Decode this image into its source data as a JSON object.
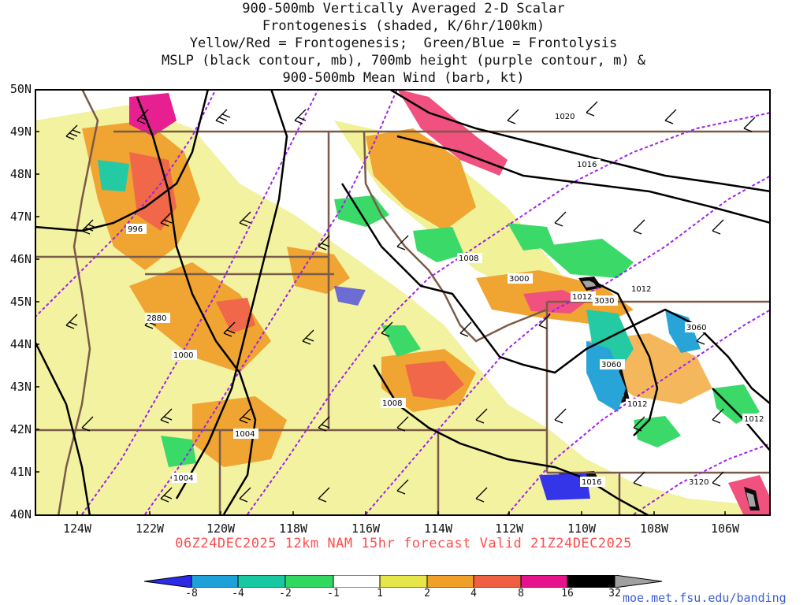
{
  "title_lines": [
    "900-500mb Vertically Averaged 2-D Scalar",
    "Frontogenesis (shaded, K/6hr/100km)",
    "Yellow/Red = Frontogenesis;  Green/Blue = Frontolysis",
    "MSLP (black contour, mb), 700mb height (purple contour, m) &",
    "900-500mb Mean Wind (barb, kt)"
  ],
  "lat_labels": [
    "50N",
    "49N",
    "48N",
    "47N",
    "46N",
    "45N",
    "44N",
    "43N",
    "42N",
    "41N",
    "40N"
  ],
  "lon_labels": [
    "124W",
    "122W",
    "120W",
    "118W",
    "116W",
    "114W",
    "112W",
    "110W",
    "108W",
    "106W"
  ],
  "footer": "06Z24DEC2025 12km NAM 15hr forecast Valid 21Z24DEC2025",
  "url": "moe.met.fsu.edu/banding",
  "colorbar": {
    "labels": [
      "-8",
      "-4",
      "-2",
      "-1",
      "1",
      "2",
      "4",
      "8",
      "16",
      "32"
    ],
    "colors": [
      "#2a2ae8",
      "#1ea0d8",
      "#18c8a0",
      "#30d860",
      "#32e632",
      "#ffffff",
      "#e6e64a",
      "#f0a028",
      "#f06040",
      "#f04878",
      "#e6148c",
      "#000000",
      "#a0a0a0"
    ]
  },
  "contour_labels": {
    "mslp": [
      "1020",
      "1016",
      "996",
      "1008",
      "1012",
      "1012",
      "1000",
      "1008",
      "1004",
      "1004",
      "1012",
      "1012",
      "1016"
    ],
    "height": [
      "3000",
      "3030",
      "3060",
      "2880",
      "3060",
      "3120"
    ]
  }
}
